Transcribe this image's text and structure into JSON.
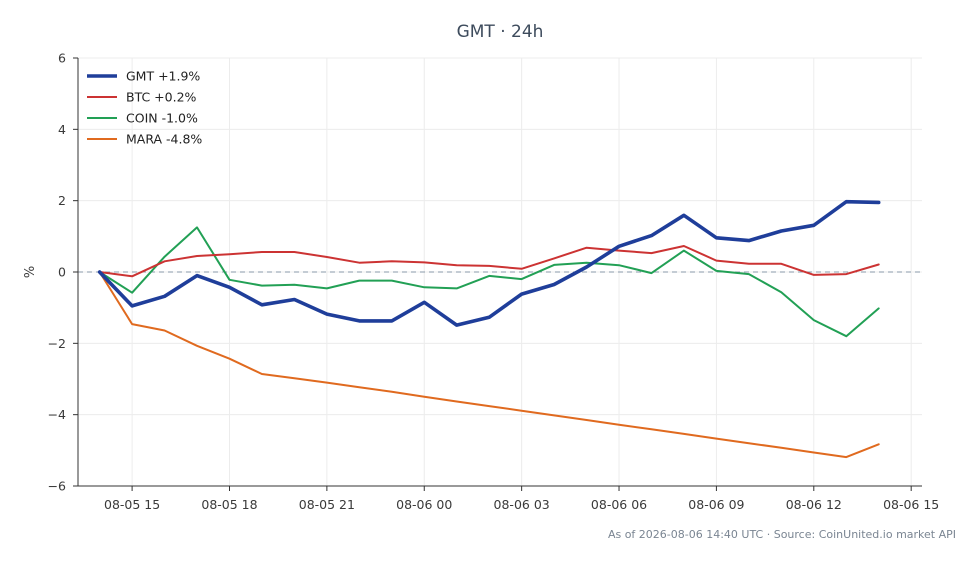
{
  "chart_data": {
    "type": "line",
    "title": "GMT · 24h",
    "ylabel": "%",
    "xlabel": "",
    "ylim": [
      -6,
      6
    ],
    "yticks": [
      -6,
      -4,
      -2,
      0,
      2,
      4,
      6
    ],
    "ytick_labels": [
      "−6",
      "−4",
      "−2",
      "0",
      "2",
      "4",
      "6"
    ],
    "xlim": [
      "2026-08-05 13:20",
      "2026-08-06 15:20"
    ],
    "xticks": [
      "2026-08-05 15:00",
      "2026-08-05 18:00",
      "2026-08-05 21:00",
      "2026-08-06 00:00",
      "2026-08-06 03:00",
      "2026-08-06 06:00",
      "2026-08-06 09:00",
      "2026-08-06 12:00",
      "2026-08-06 15:00"
    ],
    "xtick_labels": [
      "08-05 15",
      "08-05 18",
      "08-05 21",
      "08-06 00",
      "08-06 03",
      "08-06 06",
      "08-06 09",
      "08-06 12",
      "08-06 15"
    ],
    "x": [
      "2026-08-05 14:00",
      "2026-08-05 15:00",
      "2026-08-05 16:00",
      "2026-08-05 17:00",
      "2026-08-05 18:00",
      "2026-08-05 19:00",
      "2026-08-05 20:00",
      "2026-08-05 21:00",
      "2026-08-05 22:00",
      "2026-08-05 23:00",
      "2026-08-06 00:00",
      "2026-08-06 01:00",
      "2026-08-06 02:00",
      "2026-08-06 03:00",
      "2026-08-06 04:00",
      "2026-08-06 05:00",
      "2026-08-06 06:00",
      "2026-08-06 07:00",
      "2026-08-06 08:00",
      "2026-08-06 09:00",
      "2026-08-06 10:00",
      "2026-08-06 11:00",
      "2026-08-06 12:00",
      "2026-08-06 13:00",
      "2026-08-06 14:00"
    ],
    "grid": true,
    "legend_position": "top-left",
    "zero_line": true,
    "series": [
      {
        "name": "GMT +1.9%",
        "color": "#1f3e9a",
        "emphasis": true,
        "values": [
          0.0,
          -0.95,
          -0.68,
          -0.1,
          -0.43,
          -0.92,
          -0.77,
          -1.18,
          -1.37,
          -1.37,
          -0.85,
          -1.49,
          -1.27,
          -0.62,
          -0.35,
          0.14,
          0.72,
          1.02,
          1.59,
          0.96,
          0.88,
          1.15,
          1.31,
          1.97,
          1.95
        ]
      },
      {
        "name": "BTC +0.2%",
        "color": "#cc3333",
        "emphasis": false,
        "values": [
          0.0,
          -0.12,
          0.3,
          0.45,
          0.5,
          0.56,
          0.56,
          0.42,
          0.26,
          0.3,
          0.27,
          0.19,
          0.17,
          0.09,
          0.38,
          0.68,
          0.6,
          0.53,
          0.73,
          0.32,
          0.23,
          0.23,
          -0.08,
          -0.06,
          0.21
        ]
      },
      {
        "name": "COIN -1.0%",
        "color": "#22a055",
        "emphasis": false,
        "values": [
          0.0,
          -0.58,
          0.43,
          1.25,
          -0.22,
          -0.38,
          -0.36,
          -0.46,
          -0.24,
          -0.24,
          -0.43,
          -0.46,
          -0.11,
          -0.2,
          0.2,
          0.26,
          0.19,
          -0.03,
          0.6,
          0.03,
          -0.06,
          -0.57,
          -1.35,
          -1.8,
          -1.02
        ]
      },
      {
        "name": "MARA -4.8%",
        "color": "#e06a1f",
        "emphasis": false,
        "values": [
          0.0,
          -1.46,
          -1.64,
          -2.07,
          -2.43,
          -2.86,
          -2.98,
          -3.1,
          -3.23,
          -3.36,
          -3.5,
          -3.63,
          -3.76,
          -3.89,
          -4.02,
          -4.15,
          -4.28,
          -4.41,
          -4.54,
          -4.67,
          -4.8,
          -4.93,
          -5.06,
          -5.19,
          -4.83
        ]
      }
    ]
  },
  "footer": "As of 2026-08-06 14:40 UTC · Source: CoinUnited.io market API"
}
